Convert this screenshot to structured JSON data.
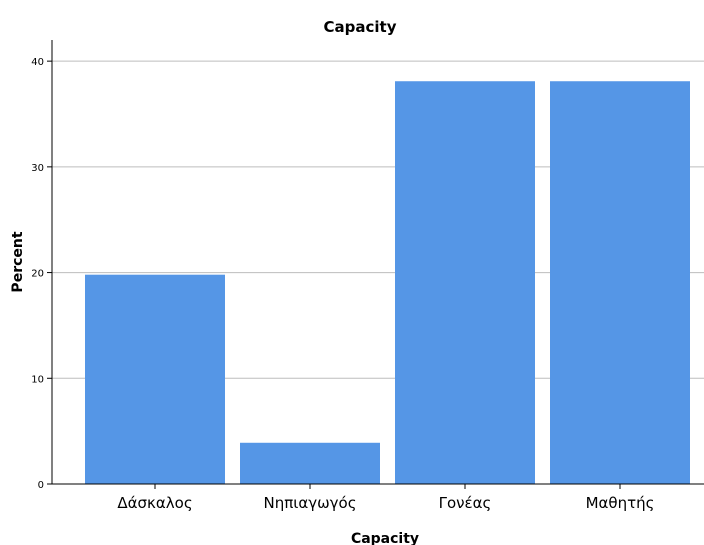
{
  "chart_data": {
    "type": "bar",
    "title": "Capacity",
    "xlabel": "Capacity",
    "ylabel": "Percent",
    "categories": [
      "Δάσκαλος",
      "Νηπιαγωγός",
      "Γονέας",
      "Μαθητής"
    ],
    "values": [
      19.8,
      3.9,
      38.1,
      38.1
    ],
    "ylim": [
      0,
      42
    ],
    "yticks": [
      "0",
      "10",
      "20",
      "30",
      "40"
    ],
    "grid": true,
    "bar_color": "#5596e6",
    "grid_color": "#bdbdbd"
  }
}
